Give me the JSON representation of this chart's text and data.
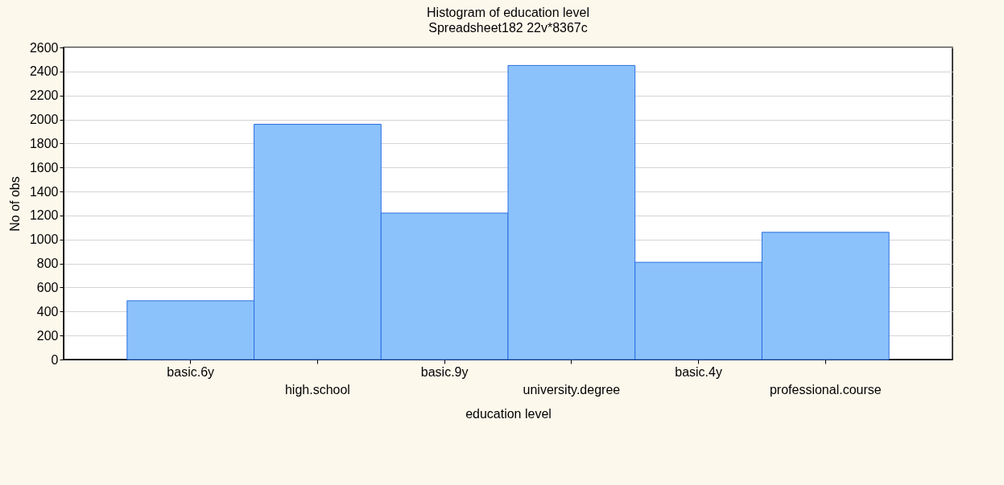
{
  "chart_data": {
    "type": "bar",
    "title": "Histogram of education level",
    "subtitle": "Spreadsheet182 22v*8367c",
    "xlabel": "education level",
    "ylabel": "No of obs",
    "categories": [
      "basic.6y",
      "high.school",
      "basic.9y",
      "university.degree",
      "basic.4y",
      "professional.course"
    ],
    "values": [
      490,
      1960,
      1220,
      2450,
      810,
      1060
    ],
    "color": "#8cc2fb",
    "ylim": [
      0,
      2600
    ],
    "yticks": [
      0,
      200,
      400,
      600,
      800,
      1000,
      1200,
      1400,
      1600,
      1800,
      2000,
      2200,
      2400,
      2600
    ],
    "grid": "y"
  }
}
